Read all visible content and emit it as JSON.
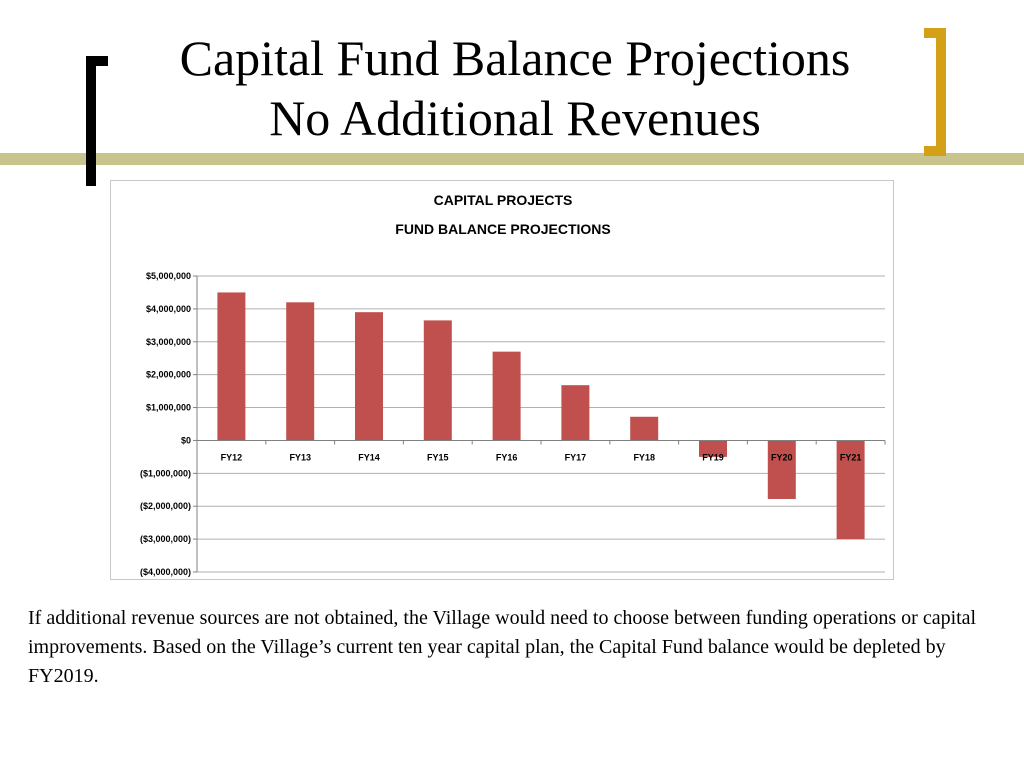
{
  "slide": {
    "title_line1": "Capital Fund Balance Projections",
    "title_line2": "No Additional Revenues",
    "body": "If additional revenue sources are not obtained, the Village would need to choose between funding operations or capital improvements.  Based on the Village’s current ten year capital plan, the Capital Fund balance would be depleted by FY2019."
  },
  "colors": {
    "bar": "#c0504d",
    "accent_bracket": "#d4a017",
    "olive_band": "#c8c48e"
  },
  "chart_data": {
    "type": "bar",
    "title_line1": "CAPITAL PROJECTS",
    "title_line2": "FUND BALANCE PROJECTIONS",
    "categories": [
      "FY12",
      "FY13",
      "FY14",
      "FY15",
      "FY16",
      "FY17",
      "FY18",
      "FY19",
      "FY20",
      "FY21"
    ],
    "values": [
      4500000,
      4200000,
      3900000,
      3650000,
      2700000,
      1680000,
      720000,
      -500000,
      -1780000,
      -3000000
    ],
    "ylim": [
      -4000000,
      5000000
    ],
    "yticks": [
      5000000,
      4000000,
      3000000,
      2000000,
      1000000,
      0,
      -1000000,
      -2000000,
      -3000000,
      -4000000
    ],
    "ytick_labels": [
      "$5,000,000",
      "$4,000,000",
      "$3,000,000",
      "$2,000,000",
      "$1,000,000",
      "$0",
      "($1,000,000)",
      "($2,000,000)",
      "($3,000,000)",
      "($4,000,000)"
    ],
    "xlabel": "",
    "ylabel": "",
    "grid": true,
    "legend": "none"
  }
}
